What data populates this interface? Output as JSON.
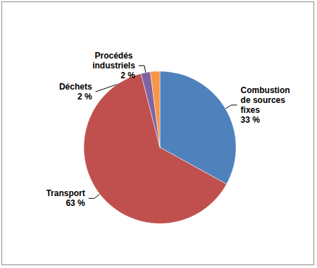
{
  "chart_data": {
    "type": "pie",
    "categories": [
      "Combustion de sources fixes",
      "Transport",
      "Procédés industriels",
      "Déchets"
    ],
    "values": [
      33,
      63,
      2,
      2
    ],
    "value_labels": [
      "33 %",
      "63 %",
      "2 %",
      "2 %"
    ],
    "colors": [
      "#4f81bd",
      "#c0504d",
      "#8064a2",
      "#f79646"
    ],
    "data_labels": true
  }
}
